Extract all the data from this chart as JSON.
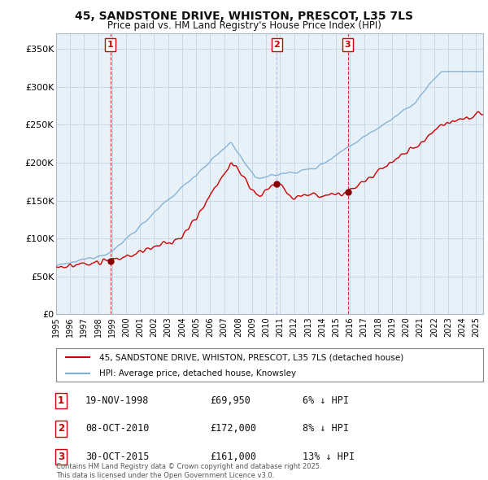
{
  "title_line1": "45, SANDSTONE DRIVE, WHISTON, PRESCOT, L35 7LS",
  "title_line2": "Price paid vs. HM Land Registry's House Price Index (HPI)",
  "ylim": [
    0,
    370000
  ],
  "yticks": [
    0,
    50000,
    100000,
    150000,
    200000,
    250000,
    300000,
    350000
  ],
  "ytick_labels": [
    "£0",
    "£50K",
    "£100K",
    "£150K",
    "£200K",
    "£250K",
    "£300K",
    "£350K"
  ],
  "sales": [
    {
      "date_num": 1998.88,
      "price": 69950,
      "label": "1"
    },
    {
      "date_num": 2010.77,
      "price": 172000,
      "label": "2"
    },
    {
      "date_num": 2015.83,
      "price": 161000,
      "label": "3"
    }
  ],
  "sale_annotations": [
    {
      "label": "1",
      "date": "19-NOV-1998",
      "price": "£69,950",
      "pct": "6% ↓ HPI"
    },
    {
      "label": "2",
      "date": "08-OCT-2010",
      "price": "£172,000",
      "pct": "8% ↓ HPI"
    },
    {
      "label": "3",
      "date": "30-OCT-2015",
      "price": "£161,000",
      "pct": "13% ↓ HPI"
    }
  ],
  "legend_line1": "45, SANDSTONE DRIVE, WHISTON, PRESCOT, L35 7LS (detached house)",
  "legend_line2": "HPI: Average price, detached house, Knowsley",
  "footer": "Contains HM Land Registry data © Crown copyright and database right 2025.\nThis data is licensed under the Open Government Licence v3.0.",
  "hpi_color": "#7bafd4",
  "sale_line_color": "#cc0000",
  "vline_color_solid": "#cc0000",
  "vline_color_dashed": "#8888cc",
  "grid_color": "#c8d8e8",
  "bg_color": "#ffffff",
  "plot_bg_color": "#e8f0f8"
}
